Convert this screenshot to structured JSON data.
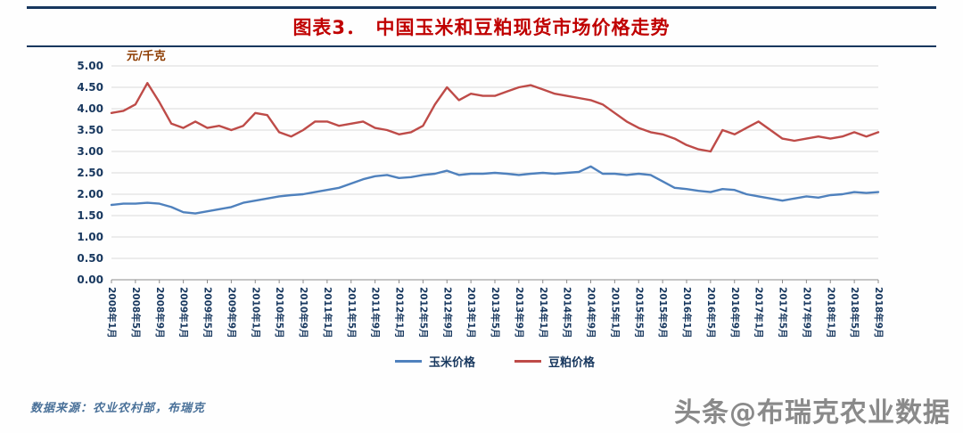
{
  "header": {
    "title": "图表3．　中国玉米和豆粕现货市场价格走势"
  },
  "chart_data": {
    "type": "line",
    "title": "中国玉米和豆粕现货市场价格走势",
    "unit_label": "元/千克",
    "xlabel": "",
    "ylabel": "元/千克",
    "ylim": [
      0,
      5.0
    ],
    "ytick_step": 0.5,
    "grid": true,
    "legend_position": "bottom",
    "x": [
      "2008-01",
      "2008-03",
      "2008-05",
      "2008-07",
      "2008-09",
      "2008-11",
      "2009-01",
      "2009-03",
      "2009-05",
      "2009-07",
      "2009-09",
      "2009-11",
      "2010-01",
      "2010-03",
      "2010-05",
      "2010-07",
      "2010-09",
      "2010-11",
      "2011-01",
      "2011-03",
      "2011-05",
      "2011-07",
      "2011-09",
      "2011-11",
      "2012-01",
      "2012-03",
      "2012-05",
      "2012-07",
      "2012-09",
      "2012-11",
      "2013-01",
      "2013-03",
      "2013-05",
      "2013-07",
      "2013-09",
      "2013-11",
      "2014-01",
      "2014-03",
      "2014-05",
      "2014-07",
      "2014-09",
      "2014-11",
      "2015-01",
      "2015-03",
      "2015-05",
      "2015-07",
      "2015-09",
      "2015-11",
      "2016-01",
      "2016-03",
      "2016-05",
      "2016-07",
      "2016-09",
      "2016-11",
      "2017-01",
      "2017-03",
      "2017-05",
      "2017-07",
      "2017-09",
      "2017-11",
      "2018-01",
      "2018-03",
      "2018-05",
      "2018-07",
      "2018-09"
    ],
    "xtick_labels": [
      "2008年1月",
      "2008年5月",
      "2008年9月",
      "2009年1月",
      "2009年5月",
      "2009年9月",
      "2010年1月",
      "2010年5月",
      "2010年9月",
      "2011年1月",
      "2011年5月",
      "2011年9月",
      "2012年1月",
      "2012年5月",
      "2012年9月",
      "2013年1月",
      "2013年5月",
      "2013年9月",
      "2014年1月",
      "2014年5月",
      "2014年9月",
      "2015年1月",
      "2015年5月",
      "2015年9月",
      "2016年1月",
      "2016年5月",
      "2016年9月",
      "2017年1月",
      "2017年5月",
      "2017年9月",
      "2018年1月",
      "2018年5月",
      "2018年9月"
    ],
    "series": [
      {
        "name": "玉米价格",
        "color": "#4f81bd",
        "values": [
          1.75,
          1.78,
          1.78,
          1.8,
          1.78,
          1.7,
          1.58,
          1.55,
          1.6,
          1.65,
          1.7,
          1.8,
          1.85,
          1.9,
          1.95,
          1.98,
          2.0,
          2.05,
          2.1,
          2.15,
          2.25,
          2.35,
          2.42,
          2.45,
          2.38,
          2.4,
          2.45,
          2.48,
          2.55,
          2.45,
          2.48,
          2.48,
          2.5,
          2.48,
          2.45,
          2.48,
          2.5,
          2.48,
          2.5,
          2.52,
          2.65,
          2.48,
          2.48,
          2.45,
          2.48,
          2.45,
          2.3,
          2.15,
          2.12,
          2.08,
          2.05,
          2.12,
          2.1,
          2.0,
          1.95,
          1.9,
          1.85,
          1.9,
          1.95,
          1.92,
          1.98,
          2.0,
          2.05,
          2.03,
          2.05
        ]
      },
      {
        "name": "豆粕价格",
        "color": "#be4b48",
        "values": [
          3.9,
          3.95,
          4.1,
          4.6,
          4.15,
          3.65,
          3.55,
          3.7,
          3.55,
          3.6,
          3.5,
          3.6,
          3.9,
          3.85,
          3.45,
          3.35,
          3.5,
          3.7,
          3.7,
          3.6,
          3.65,
          3.7,
          3.55,
          3.5,
          3.4,
          3.45,
          3.6,
          4.1,
          4.5,
          4.2,
          4.35,
          4.3,
          4.3,
          4.4,
          4.5,
          4.55,
          4.45,
          4.35,
          4.3,
          4.25,
          4.2,
          4.1,
          3.9,
          3.7,
          3.55,
          3.45,
          3.4,
          3.3,
          3.15,
          3.05,
          3.0,
          3.5,
          3.4,
          3.55,
          3.7,
          3.5,
          3.3,
          3.25,
          3.3,
          3.35,
          3.3,
          3.35,
          3.45,
          3.35,
          3.45
        ]
      }
    ]
  },
  "footer": {
    "source": "数据来源：农业农村部，布瑞克",
    "watermark": "头条@布瑞克农业数据"
  },
  "palette": {
    "title_red": "#c00000",
    "rule_navy": "#17375e",
    "axis_text": "#17375e",
    "grid_line": "#d9d9d9",
    "unit_brown": "#8c3b00",
    "source_blue": "#4a7199",
    "watermark_gray": "#8a8a8a"
  }
}
